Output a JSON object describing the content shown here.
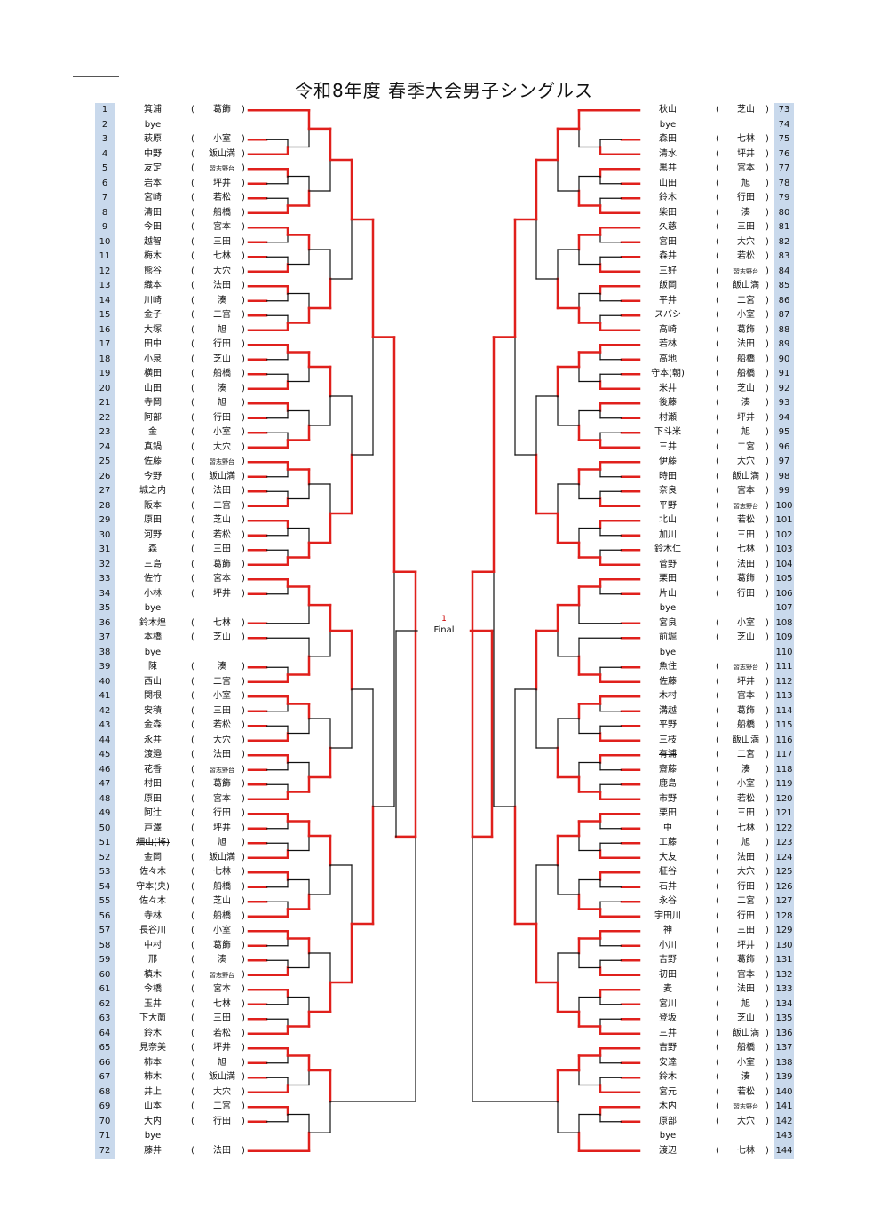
{
  "title": "令和8年度  春季大会男子シングルス",
  "final": {
    "num": "1",
    "label": "Final"
  },
  "colors": {
    "win": "#e0201c",
    "line": "#111111",
    "numbg": "#c9d9ec"
  },
  "left": [
    {
      "n": "1",
      "name": "箕浦",
      "team": "葛飾"
    },
    {
      "n": "2",
      "name": "bye",
      "team": ""
    },
    {
      "n": "3",
      "name": "萩原",
      "team": "小室",
      "strike": true
    },
    {
      "n": "4",
      "name": "中野",
      "team": "飯山満"
    },
    {
      "n": "5",
      "name": "友定",
      "team": "習志野台"
    },
    {
      "n": "6",
      "name": "岩本",
      "team": "坪井"
    },
    {
      "n": "7",
      "name": "宮崎",
      "team": "若松"
    },
    {
      "n": "8",
      "name": "清田",
      "team": "船橋"
    },
    {
      "n": "9",
      "name": "今田",
      "team": "宮本"
    },
    {
      "n": "10",
      "name": "越智",
      "team": "三田"
    },
    {
      "n": "11",
      "name": "梅木",
      "team": "七林"
    },
    {
      "n": "12",
      "name": "熊谷",
      "team": "大穴"
    },
    {
      "n": "13",
      "name": "織本",
      "team": "法田"
    },
    {
      "n": "14",
      "name": "川崎",
      "team": "湊"
    },
    {
      "n": "15",
      "name": "金子",
      "team": "二宮"
    },
    {
      "n": "16",
      "name": "大塚",
      "team": "旭"
    },
    {
      "n": "17",
      "name": "田中",
      "team": "行田"
    },
    {
      "n": "18",
      "name": "小泉",
      "team": "芝山"
    },
    {
      "n": "19",
      "name": "横田",
      "team": "船橋"
    },
    {
      "n": "20",
      "name": "山田",
      "team": "湊"
    },
    {
      "n": "21",
      "name": "寺岡",
      "team": "旭"
    },
    {
      "n": "22",
      "name": "阿部",
      "team": "行田"
    },
    {
      "n": "23",
      "name": "金",
      "team": "小室"
    },
    {
      "n": "24",
      "name": "真鍋",
      "team": "大穴"
    },
    {
      "n": "25",
      "name": "佐藤",
      "team": "習志野台"
    },
    {
      "n": "26",
      "name": "今野",
      "team": "飯山満"
    },
    {
      "n": "27",
      "name": "城之内",
      "team": "法田"
    },
    {
      "n": "28",
      "name": "阪本",
      "team": "二宮"
    },
    {
      "n": "29",
      "name": "原田",
      "team": "芝山"
    },
    {
      "n": "30",
      "name": "河野",
      "team": "若松"
    },
    {
      "n": "31",
      "name": "森",
      "team": "三田"
    },
    {
      "n": "32",
      "name": "三島",
      "team": "葛飾"
    },
    {
      "n": "33",
      "name": "佐竹",
      "team": "宮本"
    },
    {
      "n": "34",
      "name": "小林",
      "team": "坪井"
    },
    {
      "n": "35",
      "name": "bye",
      "team": ""
    },
    {
      "n": "36",
      "name": "鈴木煌",
      "team": "七林"
    },
    {
      "n": "37",
      "name": "本橋",
      "team": "芝山"
    },
    {
      "n": "38",
      "name": "bye",
      "team": ""
    },
    {
      "n": "39",
      "name": "陳",
      "team": "湊"
    },
    {
      "n": "40",
      "name": "西山",
      "team": "二宮"
    },
    {
      "n": "41",
      "name": "関根",
      "team": "小室"
    },
    {
      "n": "42",
      "name": "安積",
      "team": "三田"
    },
    {
      "n": "43",
      "name": "金森",
      "team": "若松"
    },
    {
      "n": "44",
      "name": "永井",
      "team": "大穴"
    },
    {
      "n": "45",
      "name": "渡邉",
      "team": "法田"
    },
    {
      "n": "46",
      "name": "花香",
      "team": "習志野台"
    },
    {
      "n": "47",
      "name": "村田",
      "team": "葛飾"
    },
    {
      "n": "48",
      "name": "原田",
      "team": "宮本"
    },
    {
      "n": "49",
      "name": "阿辻",
      "team": "行田"
    },
    {
      "n": "50",
      "name": "戸澤",
      "team": "坪井"
    },
    {
      "n": "51",
      "name": "畑山(将)",
      "team": "旭",
      "strike": true
    },
    {
      "n": "52",
      "name": "金岡",
      "team": "飯山満"
    },
    {
      "n": "53",
      "name": "佐々木",
      "team": "七林"
    },
    {
      "n": "54",
      "name": "守本(央)",
      "team": "船橋"
    },
    {
      "n": "55",
      "name": "佐々木",
      "team": "芝山"
    },
    {
      "n": "56",
      "name": "寺林",
      "team": "船橋"
    },
    {
      "n": "57",
      "name": "長谷川",
      "team": "小室"
    },
    {
      "n": "58",
      "name": "中村",
      "team": "葛飾"
    },
    {
      "n": "59",
      "name": "邢",
      "team": "湊"
    },
    {
      "n": "60",
      "name": "槙木",
      "team": "習志野台"
    },
    {
      "n": "61",
      "name": "今橋",
      "team": "宮本"
    },
    {
      "n": "62",
      "name": "玉井",
      "team": "七林"
    },
    {
      "n": "63",
      "name": "下大薗",
      "team": "三田"
    },
    {
      "n": "64",
      "name": "鈴木",
      "team": "若松"
    },
    {
      "n": "65",
      "name": "見奈美",
      "team": "坪井"
    },
    {
      "n": "66",
      "name": "柿本",
      "team": "旭"
    },
    {
      "n": "67",
      "name": "柿木",
      "team": "飯山満"
    },
    {
      "n": "68",
      "name": "井上",
      "team": "大穴"
    },
    {
      "n": "69",
      "name": "山本",
      "team": "二宮"
    },
    {
      "n": "70",
      "name": "大内",
      "team": "行田"
    },
    {
      "n": "71",
      "name": "bye",
      "team": ""
    },
    {
      "n": "72",
      "name": "藤井",
      "team": "法田"
    }
  ],
  "right": [
    {
      "n": "73",
      "name": "秋山",
      "team": "芝山"
    },
    {
      "n": "74",
      "name": "bye",
      "team": ""
    },
    {
      "n": "75",
      "name": "森田",
      "team": "七林"
    },
    {
      "n": "76",
      "name": "清水",
      "team": "坪井"
    },
    {
      "n": "77",
      "name": "黒井",
      "team": "宮本"
    },
    {
      "n": "78",
      "name": "山田",
      "team": "旭"
    },
    {
      "n": "79",
      "name": "鈴木",
      "team": "行田"
    },
    {
      "n": "80",
      "name": "柴田",
      "team": "湊"
    },
    {
      "n": "81",
      "name": "久慈",
      "team": "三田"
    },
    {
      "n": "82",
      "name": "宮田",
      "team": "大穴"
    },
    {
      "n": "83",
      "name": "森井",
      "team": "若松"
    },
    {
      "n": "84",
      "name": "三好",
      "team": "習志野台"
    },
    {
      "n": "85",
      "name": "飯岡",
      "team": "飯山満"
    },
    {
      "n": "86",
      "name": "平井",
      "team": "二宮"
    },
    {
      "n": "87",
      "name": "スバシ",
      "team": "小室"
    },
    {
      "n": "88",
      "name": "高崎",
      "team": "葛飾"
    },
    {
      "n": "89",
      "name": "若林",
      "team": "法田"
    },
    {
      "n": "90",
      "name": "高地",
      "team": "船橋"
    },
    {
      "n": "91",
      "name": "守本(朝)",
      "team": "船橋"
    },
    {
      "n": "92",
      "name": "米井",
      "team": "芝山"
    },
    {
      "n": "93",
      "name": "後藤",
      "team": "湊"
    },
    {
      "n": "94",
      "name": "村瀬",
      "team": "坪井"
    },
    {
      "n": "95",
      "name": "下斗米",
      "team": "旭"
    },
    {
      "n": "96",
      "name": "三井",
      "team": "二宮"
    },
    {
      "n": "97",
      "name": "伊藤",
      "team": "大穴"
    },
    {
      "n": "98",
      "name": "時田",
      "team": "飯山満"
    },
    {
      "n": "99",
      "name": "奈良",
      "team": "宮本"
    },
    {
      "n": "100",
      "name": "平野",
      "team": "習志野台"
    },
    {
      "n": "101",
      "name": "北山",
      "team": "若松"
    },
    {
      "n": "102",
      "name": "加川",
      "team": "三田"
    },
    {
      "n": "103",
      "name": "鈴木仁",
      "team": "七林"
    },
    {
      "n": "104",
      "name": "菅野",
      "team": "法田"
    },
    {
      "n": "105",
      "name": "栗田",
      "team": "葛飾"
    },
    {
      "n": "106",
      "name": "片山",
      "team": "行田"
    },
    {
      "n": "107",
      "name": "bye",
      "team": ""
    },
    {
      "n": "108",
      "name": "宮良",
      "team": "小室"
    },
    {
      "n": "109",
      "name": "前堀",
      "team": "芝山"
    },
    {
      "n": "110",
      "name": "bye",
      "team": ""
    },
    {
      "n": "111",
      "name": "魚住",
      "team": "習志野台"
    },
    {
      "n": "112",
      "name": "佐藤",
      "team": "坪井"
    },
    {
      "n": "113",
      "name": "木村",
      "team": "宮本"
    },
    {
      "n": "114",
      "name": "溝越",
      "team": "葛飾"
    },
    {
      "n": "115",
      "name": "平野",
      "team": "船橋"
    },
    {
      "n": "116",
      "name": "三枝",
      "team": "飯山満"
    },
    {
      "n": "117",
      "name": "有浦",
      "team": "二宮",
      "strike": true
    },
    {
      "n": "118",
      "name": "齋藤",
      "team": "湊"
    },
    {
      "n": "119",
      "name": "鹿島",
      "team": "小室"
    },
    {
      "n": "120",
      "name": "市野",
      "team": "若松"
    },
    {
      "n": "121",
      "name": "栗田",
      "team": "三田"
    },
    {
      "n": "122",
      "name": "中",
      "team": "七林"
    },
    {
      "n": "123",
      "name": "工藤",
      "team": "旭"
    },
    {
      "n": "124",
      "name": "大友",
      "team": "法田"
    },
    {
      "n": "125",
      "name": "柾谷",
      "team": "大穴"
    },
    {
      "n": "126",
      "name": "石井",
      "team": "行田"
    },
    {
      "n": "127",
      "name": "永谷",
      "team": "二宮"
    },
    {
      "n": "128",
      "name": "宇田川",
      "team": "行田"
    },
    {
      "n": "129",
      "name": "神",
      "team": "三田"
    },
    {
      "n": "130",
      "name": "小川",
      "team": "坪井"
    },
    {
      "n": "131",
      "name": "吉野",
      "team": "葛飾"
    },
    {
      "n": "132",
      "name": "初田",
      "team": "宮本"
    },
    {
      "n": "133",
      "name": "麦",
      "team": "法田"
    },
    {
      "n": "134",
      "name": "宮川",
      "team": "旭"
    },
    {
      "n": "135",
      "name": "登坂",
      "team": "芝山"
    },
    {
      "n": "136",
      "name": "三井",
      "team": "飯山満"
    },
    {
      "n": "137",
      "name": "吉野",
      "team": "船橋"
    },
    {
      "n": "138",
      "name": "安達",
      "team": "小室"
    },
    {
      "n": "139",
      "name": "鈴木",
      "team": "湊"
    },
    {
      "n": "140",
      "name": "宮元",
      "team": "若松"
    },
    {
      "n": "141",
      "name": "木内",
      "team": "習志野台"
    },
    {
      "n": "142",
      "name": "原部",
      "team": "大穴"
    },
    {
      "n": "143",
      "name": "bye",
      "team": ""
    },
    {
      "n": "144",
      "name": "渡辺",
      "team": "七林"
    }
  ]
}
